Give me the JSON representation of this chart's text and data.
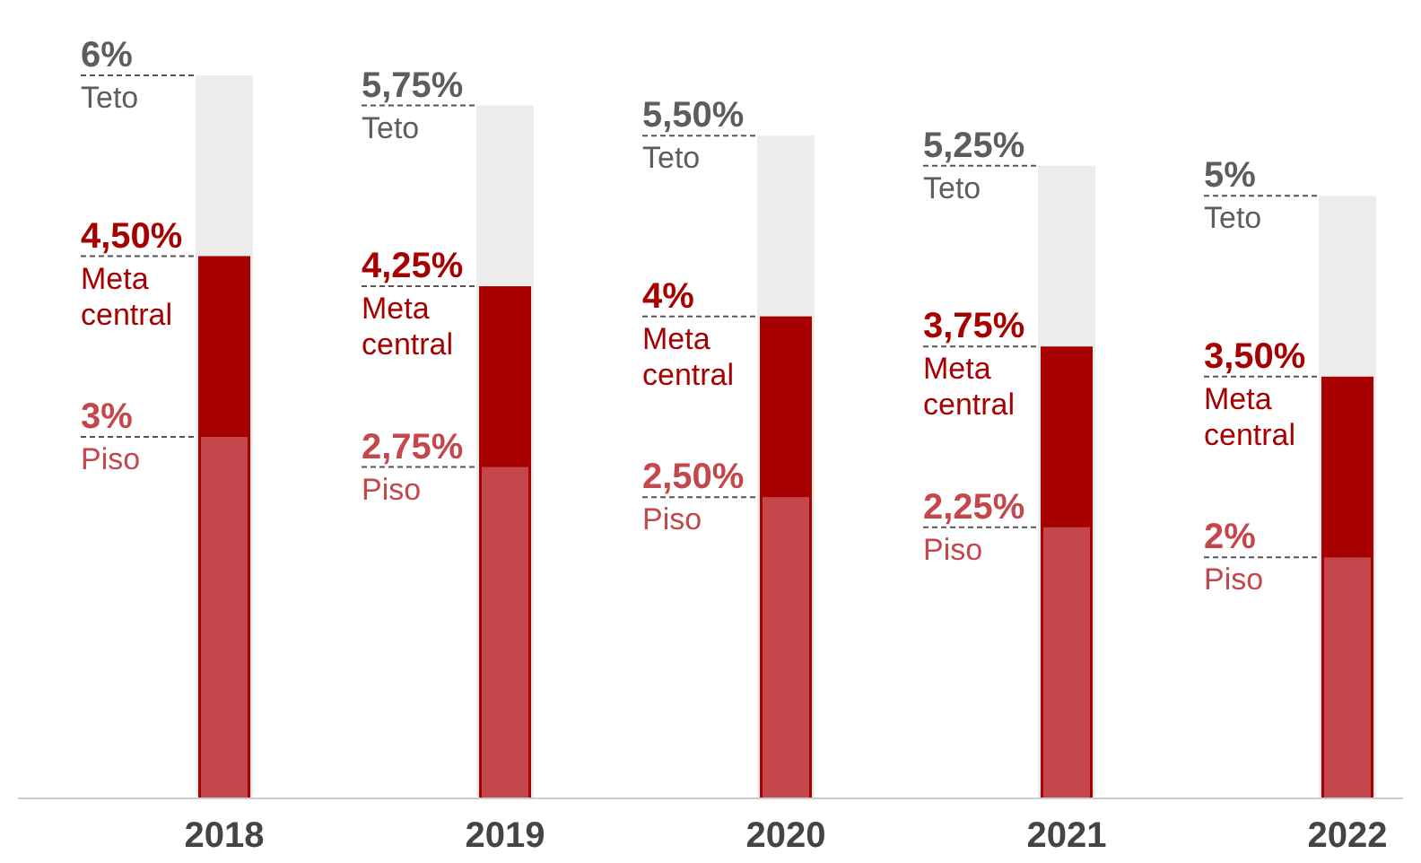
{
  "chart_data": {
    "type": "bar",
    "categories": [
      "2018",
      "2019",
      "2020",
      "2021",
      "2022"
    ],
    "series": [
      {
        "name": "Piso",
        "color": "#c3474b",
        "values": [
          3,
          2.75,
          2.5,
          2.25,
          2
        ],
        "value_labels": [
          "3%",
          "2,75%",
          "2,50%",
          "2,25%",
          "2%"
        ]
      },
      {
        "name": "Meta central",
        "color": "#a60000",
        "values": [
          4.5,
          4.25,
          4,
          3.75,
          3.5
        ],
        "value_labels": [
          "4,50%",
          "4,25%",
          "4%",
          "3,75%",
          "3,50%"
        ]
      },
      {
        "name": "Teto",
        "color": "#ececec",
        "values": [
          6,
          5.75,
          5.5,
          5.25,
          5
        ],
        "value_labels": [
          "6%",
          "5,75%",
          "5,50%",
          "5,25%",
          "5%"
        ]
      }
    ]
  }
}
